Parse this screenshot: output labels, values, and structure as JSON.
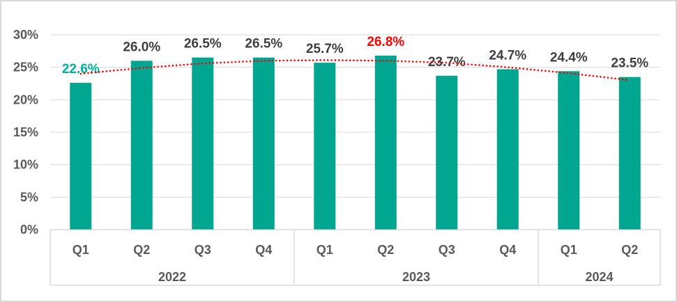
{
  "window": {
    "background": "#FFFFFF",
    "border_color": "#D8D8D8"
  },
  "chart_data": {
    "type": "bar",
    "title": "",
    "xlabel": "",
    "ylabel": "",
    "categories": [
      "Q1",
      "Q2",
      "Q3",
      "Q4",
      "Q1",
      "Q2",
      "Q3",
      "Q4",
      "Q1",
      "Q2"
    ],
    "year_groups": [
      {
        "label": "2022",
        "span": 4
      },
      {
        "label": "2023",
        "span": 4
      },
      {
        "label": "2024",
        "span": 2
      }
    ],
    "values": [
      22.6,
      26.0,
      26.5,
      26.5,
      25.7,
      26.8,
      23.7,
      24.7,
      24.4,
      23.5
    ],
    "data_labels": [
      "22.6%",
      "26.0%",
      "26.5%",
      "26.5%",
      "25.7%",
      "26.8%",
      "23.7%",
      "24.7%",
      "24.4%",
      "23.5%"
    ],
    "data_label_default_color": "#3F3F3F",
    "data_label_colors": {
      "0": "#00B0A2",
      "5": "#FF0000"
    },
    "ylim": [
      0,
      30
    ],
    "y_tick_step": 5,
    "y_tick_labels": [
      "0%",
      "5%",
      "10%",
      "15%",
      "20%",
      "25%",
      "30%"
    ],
    "grid": true,
    "legend": "none",
    "bar_color": "#00A68F",
    "axis_text_color": "#595959",
    "gridline_color": "#D9D9D9",
    "axis_box_color": "#C9C9C9",
    "trendline": {
      "type": "polynomial",
      "order": 2,
      "color": "#FF0000",
      "style": "dotted",
      "values": [
        24.0,
        24.9,
        25.6,
        26.0,
        26.1,
        26.0,
        25.7,
        25.0,
        24.1,
        23.0
      ]
    }
  }
}
